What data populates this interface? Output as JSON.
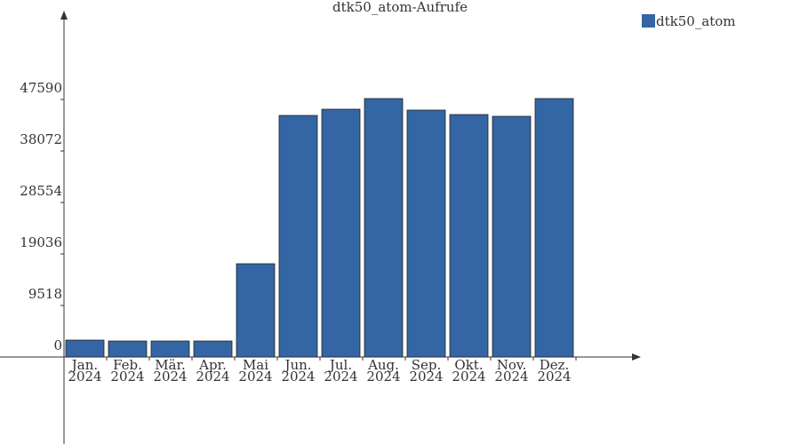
{
  "chart_data": {
    "type": "bar",
    "title": "dtk50_atom-Aufrufe",
    "categories": [
      [
        "Jan.",
        "2024"
      ],
      [
        "Feb.",
        "2024"
      ],
      [
        "Mär.",
        "2024"
      ],
      [
        "Apr.",
        "2024"
      ],
      [
        "Mai",
        "2024"
      ],
      [
        "Jun.",
        "2024"
      ],
      [
        "Jul.",
        "2024"
      ],
      [
        "Aug.",
        "2024"
      ],
      [
        "Sep.",
        "2024"
      ],
      [
        "Okt.",
        "2024"
      ],
      [
        "Nov.",
        "2024"
      ],
      [
        "Dez.",
        "2024"
      ]
    ],
    "series": [
      {
        "name": "dtk50_atom",
        "color": "#3465a4",
        "values": [
          3118,
          2950,
          2950,
          2950,
          17230,
          44636,
          45785,
          47754,
          45620,
          44800,
          44472,
          47754
        ]
      }
    ],
    "ylim": [
      -16082,
      63507
    ],
    "yticks": [
      0,
      9518,
      19036,
      28554,
      38072,
      47590
    ],
    "legend": "top-right"
  }
}
